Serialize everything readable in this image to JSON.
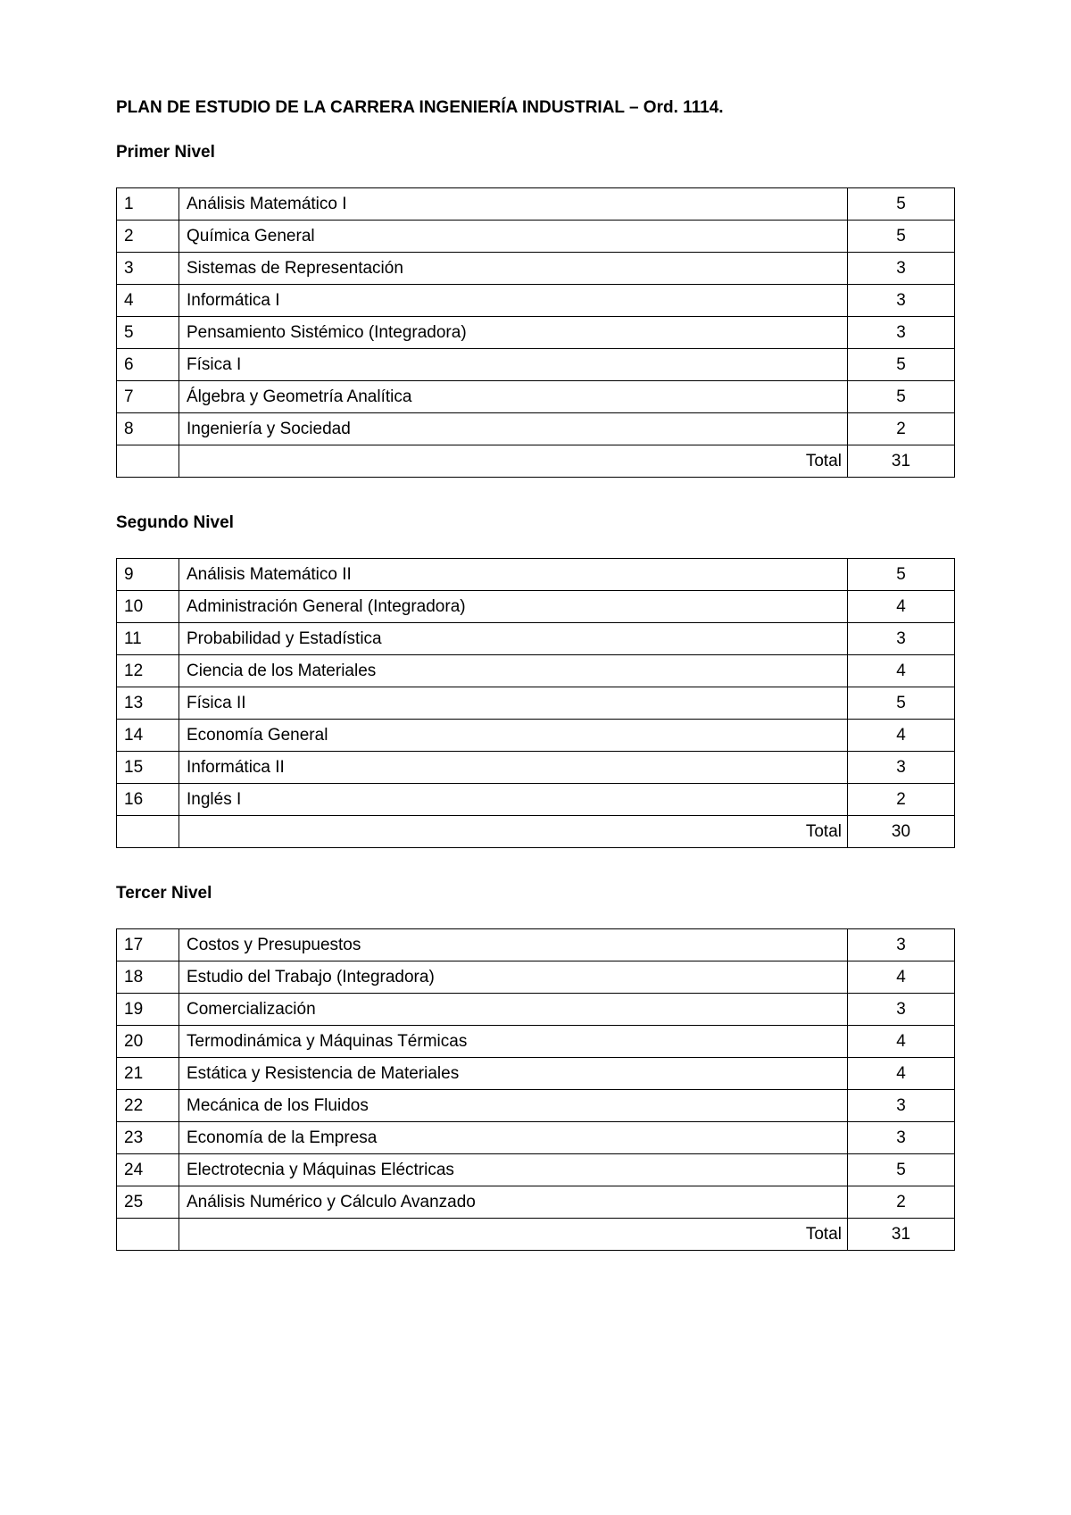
{
  "title": "PLAN DE ESTUDIO DE LA CARRERA INGENIERÍA INDUSTRIAL – Ord. 1114.",
  "totalLabel": "Total",
  "levels": [
    {
      "heading": "Primer Nivel",
      "rows": [
        {
          "num": "1",
          "name": "Análisis Matemático I",
          "credits": "5"
        },
        {
          "num": "2",
          "name": "Química General",
          "credits": "5"
        },
        {
          "num": "3",
          "name": "Sistemas de Representación",
          "credits": "3"
        },
        {
          "num": "4",
          "name": "Informática I",
          "credits": "3"
        },
        {
          "num": "5",
          "name": "Pensamiento Sistémico (Integradora)",
          "credits": "3"
        },
        {
          "num": "6",
          "name": "Física I",
          "credits": "5"
        },
        {
          "num": "7",
          "name": "Álgebra y Geometría Analítica",
          "credits": "5"
        },
        {
          "num": "8",
          "name": "Ingeniería y Sociedad",
          "credits": "2"
        }
      ],
      "total": "31"
    },
    {
      "heading": "Segundo Nivel",
      "rows": [
        {
          "num": "9",
          "name": "Análisis Matemático II",
          "credits": "5"
        },
        {
          "num": "10",
          "name": "Administración General (Integradora)",
          "credits": "4"
        },
        {
          "num": "11",
          "name": "Probabilidad y Estadística",
          "credits": "3"
        },
        {
          "num": "12",
          "name": "Ciencia de los Materiales",
          "credits": "4"
        },
        {
          "num": "13",
          "name": "Física II",
          "credits": "5"
        },
        {
          "num": "14",
          "name": "Economía General",
          "credits": "4"
        },
        {
          "num": "15",
          "name": "Informática II",
          "credits": "3"
        },
        {
          "num": "16",
          "name": "Inglés I",
          "credits": "2"
        }
      ],
      "total": "30"
    },
    {
      "heading": "Tercer Nivel",
      "rows": [
        {
          "num": "17",
          "name": "Costos y Presupuestos",
          "credits": "3"
        },
        {
          "num": "18",
          "name": "Estudio del Trabajo (Integradora)",
          "credits": "4"
        },
        {
          "num": "19",
          "name": "Comercialización",
          "credits": "3"
        },
        {
          "num": "20",
          "name": "Termodinámica y Máquinas Térmicas",
          "credits": "4"
        },
        {
          "num": "21",
          "name": "Estática y Resistencia de Materiales",
          "credits": "4"
        },
        {
          "num": "22",
          "name": "Mecánica de los Fluidos",
          "credits": "3"
        },
        {
          "num": "23",
          "name": "Economía de la Empresa",
          "credits": "3"
        },
        {
          "num": "24",
          "name": "Electrotecnia y Máquinas Eléctricas",
          "credits": "5"
        },
        {
          "num": "25",
          "name": "Análisis Numérico y Cálculo Avanzado",
          "credits": "2"
        }
      ],
      "total": "31"
    }
  ]
}
